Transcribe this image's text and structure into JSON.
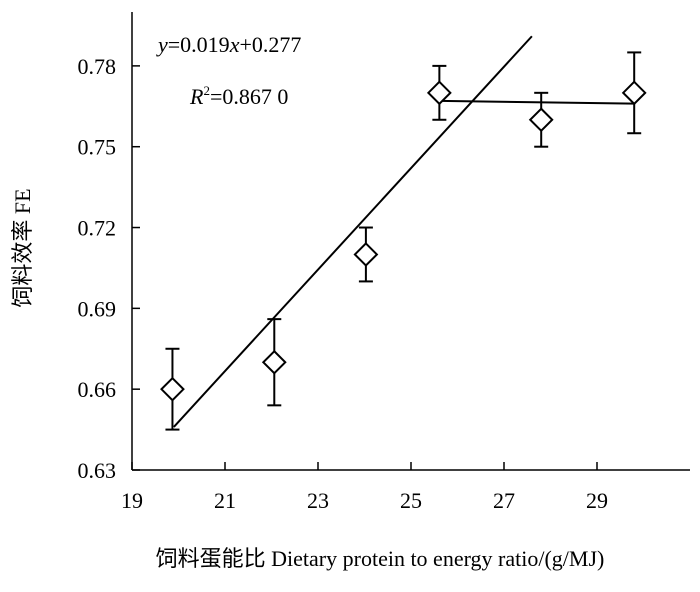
{
  "chart_data": {
    "type": "scatter",
    "title": "",
    "xlabel": "饲料蛋能比 Dietary protein to energy ratio/(g/MJ)",
    "ylabel": "饲料效率  FE",
    "xlim": [
      19,
      31
    ],
    "ylim": [
      0.63,
      0.8
    ],
    "x_ticks": [
      19,
      21,
      23,
      25,
      27,
      29
    ],
    "y_ticks": [
      0.63,
      0.66,
      0.69,
      0.72,
      0.75,
      0.78
    ],
    "x_tick_labels": [
      "19",
      "21",
      "23",
      "25",
      "27",
      "29"
    ],
    "y_tick_labels": [
      "0.63",
      "0.66",
      "0.69",
      "0.72",
      "0.75",
      "0.78"
    ],
    "grid": false,
    "points": [
      {
        "x": 19.87,
        "y": 0.66,
        "err_low": 0.645,
        "err_high": 0.675
      },
      {
        "x": 22.06,
        "y": 0.67,
        "err_low": 0.654,
        "err_high": 0.686
      },
      {
        "x": 24.03,
        "y": 0.71,
        "err_low": 0.7,
        "err_high": 0.72
      },
      {
        "x": 25.61,
        "y": 0.77,
        "err_low": 0.76,
        "err_high": 0.78
      },
      {
        "x": 27.8,
        "y": 0.76,
        "err_low": 0.75,
        "err_high": 0.77
      },
      {
        "x": 29.8,
        "y": 0.77,
        "err_low": 0.755,
        "err_high": 0.785
      }
    ],
    "fit_lines": [
      {
        "x": [
          19.9,
          27.6
        ],
        "y": [
          0.646,
          0.791
        ]
      },
      {
        "x": [
          25.61,
          29.8
        ],
        "y": [
          0.767,
          0.766
        ]
      }
    ],
    "annotation": {
      "equation": {
        "y": "y",
        "rest": "=0.019",
        "x": "x",
        "tail": "+0.277"
      },
      "r2": {
        "r": "R",
        "sup": "2",
        "value": "=0.867 0"
      }
    }
  }
}
